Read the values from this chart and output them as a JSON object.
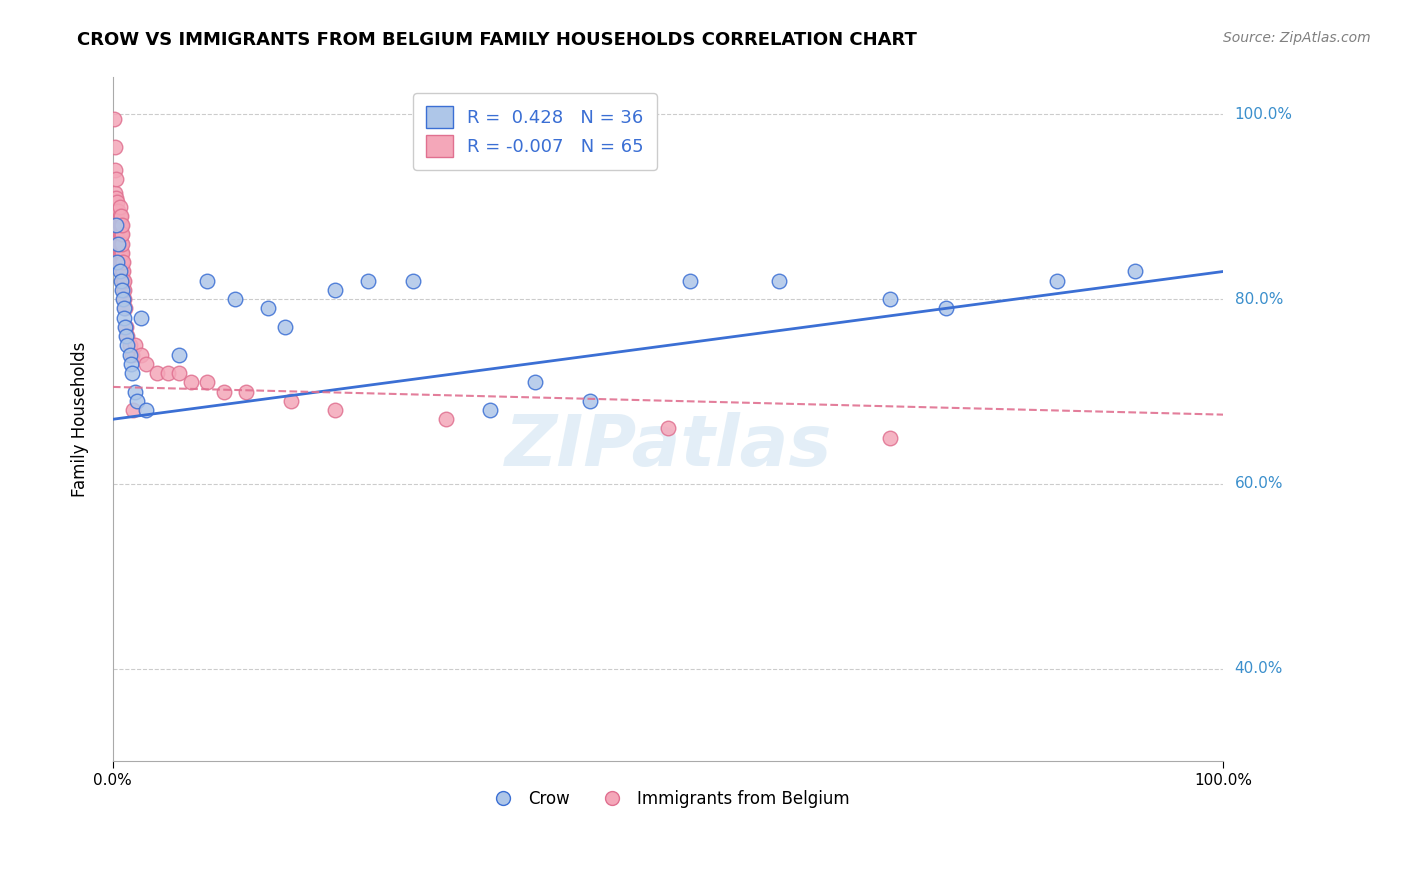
{
  "title": "CROW VS IMMIGRANTS FROM BELGIUM FAMILY HOUSEHOLDS CORRELATION CHART",
  "source": "Source: ZipAtlas.com",
  "xlabel": "",
  "ylabel": "Family Households",
  "xlim": [
    0.0,
    1.0
  ],
  "ylim": [
    0.3,
    1.04
  ],
  "ytick_labels": [
    "40.0%",
    "60.0%",
    "80.0%",
    "100.0%"
  ],
  "ytick_values": [
    0.4,
    0.6,
    0.8,
    1.0
  ],
  "xtick_values": [
    0.0,
    1.0
  ],
  "xtick_labels": [
    "0.0%",
    "100.0%"
  ],
  "crow_color": "#aec6e8",
  "belgium_color": "#f4a7b9",
  "crow_line_color": "#3b6fd4",
  "belgium_line_color": "#e07090",
  "crow_R": 0.428,
  "crow_N": 36,
  "belgium_R": -0.007,
  "belgium_N": 65,
  "legend_text_color": "#3b6fd4",
  "watermark": "ZIPatlas",
  "grid_color": "#cccccc",
  "crow_x": [
    0.003,
    0.004,
    0.005,
    0.006,
    0.007,
    0.008,
    0.009,
    0.01,
    0.01,
    0.011,
    0.012,
    0.013,
    0.015,
    0.016,
    0.017,
    0.02,
    0.022,
    0.025,
    0.03,
    0.06,
    0.085,
    0.11,
    0.14,
    0.155,
    0.2,
    0.23,
    0.27,
    0.34,
    0.38,
    0.43,
    0.52,
    0.6,
    0.7,
    0.75,
    0.85,
    0.92
  ],
  "crow_y": [
    0.88,
    0.84,
    0.86,
    0.83,
    0.82,
    0.81,
    0.8,
    0.79,
    0.78,
    0.77,
    0.76,
    0.75,
    0.74,
    0.73,
    0.72,
    0.7,
    0.69,
    0.78,
    0.68,
    0.74,
    0.82,
    0.8,
    0.79,
    0.77,
    0.81,
    0.82,
    0.82,
    0.68,
    0.71,
    0.69,
    0.82,
    0.82,
    0.8,
    0.79,
    0.82,
    0.83
  ],
  "belgium_x": [
    0.001,
    0.002,
    0.002,
    0.002,
    0.003,
    0.003,
    0.003,
    0.004,
    0.004,
    0.004,
    0.004,
    0.005,
    0.005,
    0.005,
    0.005,
    0.005,
    0.006,
    0.006,
    0.006,
    0.006,
    0.006,
    0.006,
    0.006,
    0.007,
    0.007,
    0.007,
    0.007,
    0.007,
    0.007,
    0.007,
    0.008,
    0.008,
    0.008,
    0.008,
    0.008,
    0.008,
    0.008,
    0.009,
    0.009,
    0.009,
    0.009,
    0.01,
    0.01,
    0.01,
    0.011,
    0.012,
    0.013,
    0.015,
    0.017,
    0.018,
    0.02,
    0.025,
    0.03,
    0.04,
    0.05,
    0.06,
    0.07,
    0.085,
    0.1,
    0.12,
    0.16,
    0.2,
    0.3,
    0.5,
    0.7
  ],
  "belgium_y": [
    0.995,
    0.915,
    0.94,
    0.965,
    0.895,
    0.91,
    0.93,
    0.875,
    0.885,
    0.895,
    0.905,
    0.855,
    0.865,
    0.875,
    0.885,
    0.895,
    0.84,
    0.85,
    0.86,
    0.87,
    0.88,
    0.89,
    0.9,
    0.83,
    0.84,
    0.85,
    0.86,
    0.87,
    0.88,
    0.89,
    0.82,
    0.83,
    0.84,
    0.85,
    0.86,
    0.87,
    0.88,
    0.81,
    0.82,
    0.83,
    0.84,
    0.8,
    0.81,
    0.82,
    0.79,
    0.77,
    0.76,
    0.75,
    0.74,
    0.68,
    0.75,
    0.74,
    0.73,
    0.72,
    0.72,
    0.72,
    0.71,
    0.71,
    0.7,
    0.7,
    0.69,
    0.68,
    0.67,
    0.66,
    0.65
  ]
}
